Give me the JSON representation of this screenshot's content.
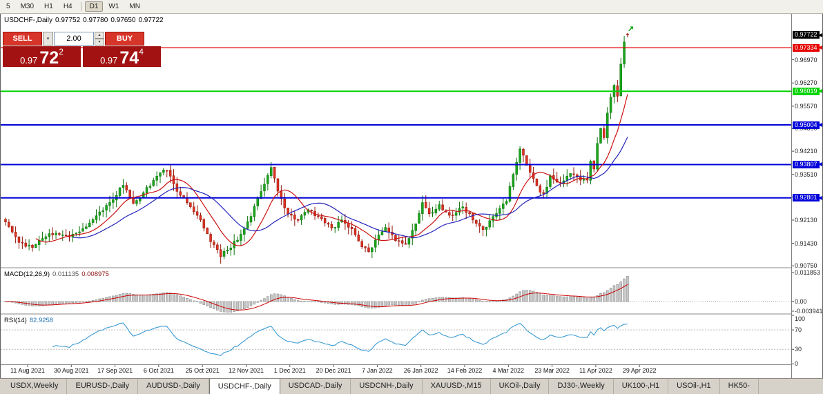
{
  "colors": {
    "up_candle": "#1ca51c",
    "down_candle": "#dd3222",
    "candle_up_edge": "#0a720a",
    "candle_down_edge": "#8f1206",
    "ma_fast": "#cc1111",
    "ma_slow": "#2222bb",
    "macd_histogram": "#c8c8c8",
    "macd_signal": "#cc0000",
    "rsi_line": "#3a9ad2",
    "sell_buy_button": "#d8352a",
    "price_box": "#a31212",
    "current_price_chip": "#000000"
  },
  "toolbar": {
    "timeframes": [
      {
        "label": "5",
        "active": false
      },
      {
        "label": "M30",
        "active": false
      },
      {
        "label": "H1",
        "active": false
      },
      {
        "label": "H4",
        "active": false
      },
      {
        "label": "D1",
        "active": true
      },
      {
        "label": "W1",
        "active": false
      },
      {
        "label": "MN",
        "active": false
      }
    ]
  },
  "chart_header": {
    "symbol": "USDCHF-,Daily",
    "open": "0.97752",
    "high": "0.97780",
    "low": "0.97650",
    "close": "0.97722"
  },
  "trade_panel": {
    "sell_label": "SELL",
    "buy_label": "BUY",
    "volume": "2.00",
    "sell_price": {
      "prefix": "0.97",
      "big": "72",
      "sup": "2"
    },
    "buy_price": {
      "prefix": "0.97",
      "big": "74",
      "sup": "4"
    }
  },
  "price_axis": {
    "current": {
      "text": "0.97722",
      "value": 0.97722
    },
    "levels": [
      {
        "text": "0.97334",
        "value": 0.97334,
        "color": "#e60000",
        "line_width": 1.3,
        "type": "resistance"
      },
      {
        "text": "0.96019",
        "value": 0.96019,
        "color": "#00d300",
        "line_width": 2,
        "type": "support"
      },
      {
        "text": "0.95004",
        "value": 0.95004,
        "color": "#0000d9",
        "line_width": 2,
        "type": "support"
      },
      {
        "text": "0.93807",
        "value": 0.93807,
        "color": "#0000d9",
        "line_width": 2,
        "type": "support"
      },
      {
        "text": "0.92801",
        "value": 0.92801,
        "color": "#0000d9",
        "line_width": 2,
        "type": "support"
      }
    ],
    "ticks": [
      "0.96970",
      "0.96270",
      "0.95570",
      "0.94890",
      "0.94210",
      "0.93510",
      "0.92830",
      "0.92130",
      "0.91430",
      "0.90750"
    ]
  },
  "indicators": {
    "macd": {
      "label": "MACD(12,26,9)",
      "value_main": "0.011135",
      "value_signal": "0.008975",
      "axis_labels": [
        {
          "text": "0.011853",
          "value": 0.011853
        },
        {
          "text": "0.00",
          "value": 0
        },
        {
          "text": "-0.003941",
          "value": -0.003941
        }
      ]
    },
    "rsi": {
      "label": "RSI(14)",
      "value": "82.9258",
      "axis_labels": [
        {
          "text": "100",
          "value": 100
        },
        {
          "text": "70",
          "value": 70
        },
        {
          "text": "30",
          "value": 30
        },
        {
          "text": "0",
          "value": 0
        }
      ]
    }
  },
  "time_axis": {
    "dates": [
      "11 Aug 2021",
      "30 Aug 2021",
      "17 Sep 2021",
      "6 Oct 2021",
      "25 Oct 2021",
      "12 Nov 2021",
      "1 Dec 2021",
      "20 Dec 2021",
      "7 Jan 2022",
      "26 Jan 2022",
      "14 Feb 2022",
      "4 Mar 2022",
      "23 Mar 2022",
      "11 Apr 2022",
      "29 Apr 2022"
    ]
  },
  "tabs": [
    {
      "label": "USDX,Weekly",
      "active": false
    },
    {
      "label": "EURUSD-,Daily",
      "active": false
    },
    {
      "label": "AUDUSD-,Daily",
      "active": false
    },
    {
      "label": "USDCHF-,Daily",
      "active": true
    },
    {
      "label": "USDCAD-,Daily",
      "active": false
    },
    {
      "label": "USDCNH-,Daily",
      "active": false
    },
    {
      "label": "XAUUSD-,M15",
      "active": false
    },
    {
      "label": "UKOil-,Daily",
      "active": false
    },
    {
      "label": "DJ30-,Weekly",
      "active": false
    },
    {
      "label": "UK100-,H1",
      "active": false
    },
    {
      "label": "USOil-,H1",
      "active": false
    },
    {
      "label": "HK50-",
      "active": false
    }
  ],
  "chart_data": {
    "type": "candlestick",
    "symbol": "USDCHF",
    "timeframe": "Daily",
    "x_range": [
      "11 Aug 2021",
      "29 Apr 2022"
    ],
    "ylim": [
      0.9071,
      0.9836
    ],
    "bars": 186,
    "last_candle": {
      "open": 0.97752,
      "high": 0.9778,
      "low": 0.9765,
      "close": 0.97722
    },
    "horizontal_levels": [
      0.97334,
      0.96019,
      0.95004,
      0.93807,
      0.92801
    ],
    "overlays": [
      {
        "name": "ma-fast",
        "period": 10,
        "color": "#cc1111"
      },
      {
        "name": "ma-slow",
        "period": 21,
        "color": "#2222bb"
      }
    ],
    "sub_indicators": [
      {
        "name": "MACD",
        "params": [
          12,
          26,
          9
        ],
        "last_values": [
          0.011135,
          0.008975
        ]
      },
      {
        "name": "RSI",
        "params": [
          14
        ],
        "last_value": 82.9258
      }
    ],
    "close_anchors": [
      [
        0,
        0.921
      ],
      [
        4,
        0.9148
      ],
      [
        8,
        0.913
      ],
      [
        13,
        0.9172
      ],
      [
        19,
        0.9165
      ],
      [
        23,
        0.9188
      ],
      [
        27,
        0.9225
      ],
      [
        32,
        0.9278
      ],
      [
        35,
        0.932
      ],
      [
        38,
        0.9262
      ],
      [
        41,
        0.9292
      ],
      [
        45,
        0.935
      ],
      [
        48,
        0.9365
      ],
      [
        51,
        0.9302
      ],
      [
        54,
        0.9262
      ],
      [
        58,
        0.9212
      ],
      [
        61,
        0.9152
      ],
      [
        64,
        0.9105
      ],
      [
        67,
        0.9132
      ],
      [
        71,
        0.9182
      ],
      [
        74,
        0.9252
      ],
      [
        77,
        0.9322
      ],
      [
        79,
        0.9372
      ],
      [
        81,
        0.9302
      ],
      [
        84,
        0.9232
      ],
      [
        87,
        0.9212
      ],
      [
        90,
        0.9246
      ],
      [
        93,
        0.9222
      ],
      [
        97,
        0.9186
      ],
      [
        100,
        0.9212
      ],
      [
        103,
        0.9182
      ],
      [
        106,
        0.9132
      ],
      [
        108,
        0.9116
      ],
      [
        110,
        0.9152
      ],
      [
        113,
        0.9186
      ],
      [
        116,
        0.9156
      ],
      [
        119,
        0.9142
      ],
      [
        122,
        0.9202
      ],
      [
        124,
        0.9266
      ],
      [
        126,
        0.9232
      ],
      [
        129,
        0.9256
      ],
      [
        132,
        0.9222
      ],
      [
        136,
        0.9252
      ],
      [
        139,
        0.9216
      ],
      [
        142,
        0.9182
      ],
      [
        145,
        0.9222
      ],
      [
        149,
        0.9272
      ],
      [
        151,
        0.9352
      ],
      [
        153,
        0.9426
      ],
      [
        155,
        0.9382
      ],
      [
        158,
        0.9312
      ],
      [
        160,
        0.9292
      ],
      [
        162,
        0.9342
      ],
      [
        165,
        0.9322
      ],
      [
        168,
        0.9356
      ],
      [
        171,
        0.9336
      ],
      [
        173,
        0.9332
      ],
      [
        174,
        0.9392
      ],
      [
        175,
        0.9362
      ],
      [
        176,
        0.9442
      ],
      [
        177,
        0.9492
      ],
      [
        178,
        0.9458
      ],
      [
        179,
        0.9532
      ],
      [
        180,
        0.9582
      ],
      [
        181,
        0.9622
      ],
      [
        182,
        0.9592
      ],
      [
        183,
        0.9682
      ],
      [
        184,
        0.9752
      ],
      [
        185,
        0.97722
      ]
    ]
  }
}
